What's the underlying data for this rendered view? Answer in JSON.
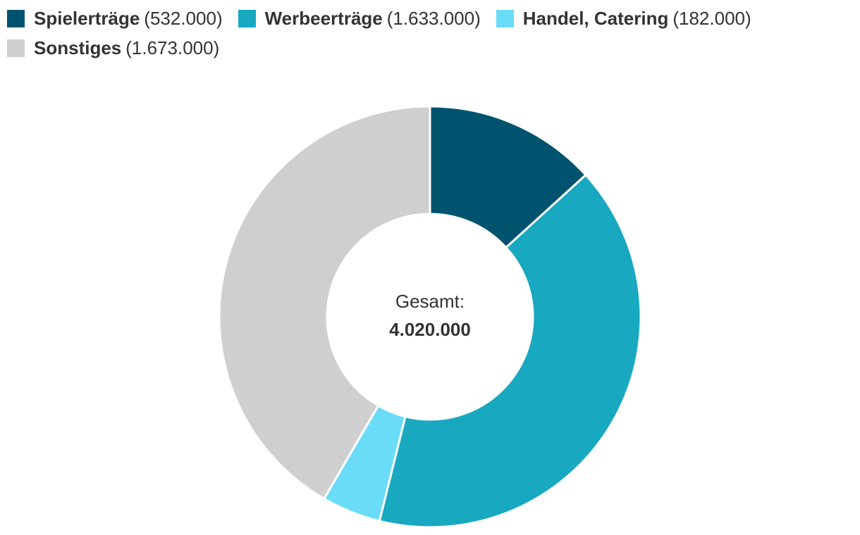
{
  "chart_data": {
    "type": "pie",
    "style": "donut",
    "legend_position": "top-left",
    "categories": [
      "Spielerträge",
      "Werbeerträge",
      "Handel, Catering",
      "Sonstiges"
    ],
    "values": [
      532000,
      1633000,
      182000,
      1673000
    ],
    "value_labels": [
      "(532.000)",
      "(1.633.000)",
      "(182.000)",
      "(1.673.000)"
    ],
    "colors": [
      "#00536e",
      "#18a8c0",
      "#6adcf7",
      "#cfcfcf"
    ],
    "center_title": "Gesamt:",
    "center_value": "4.020.000"
  }
}
